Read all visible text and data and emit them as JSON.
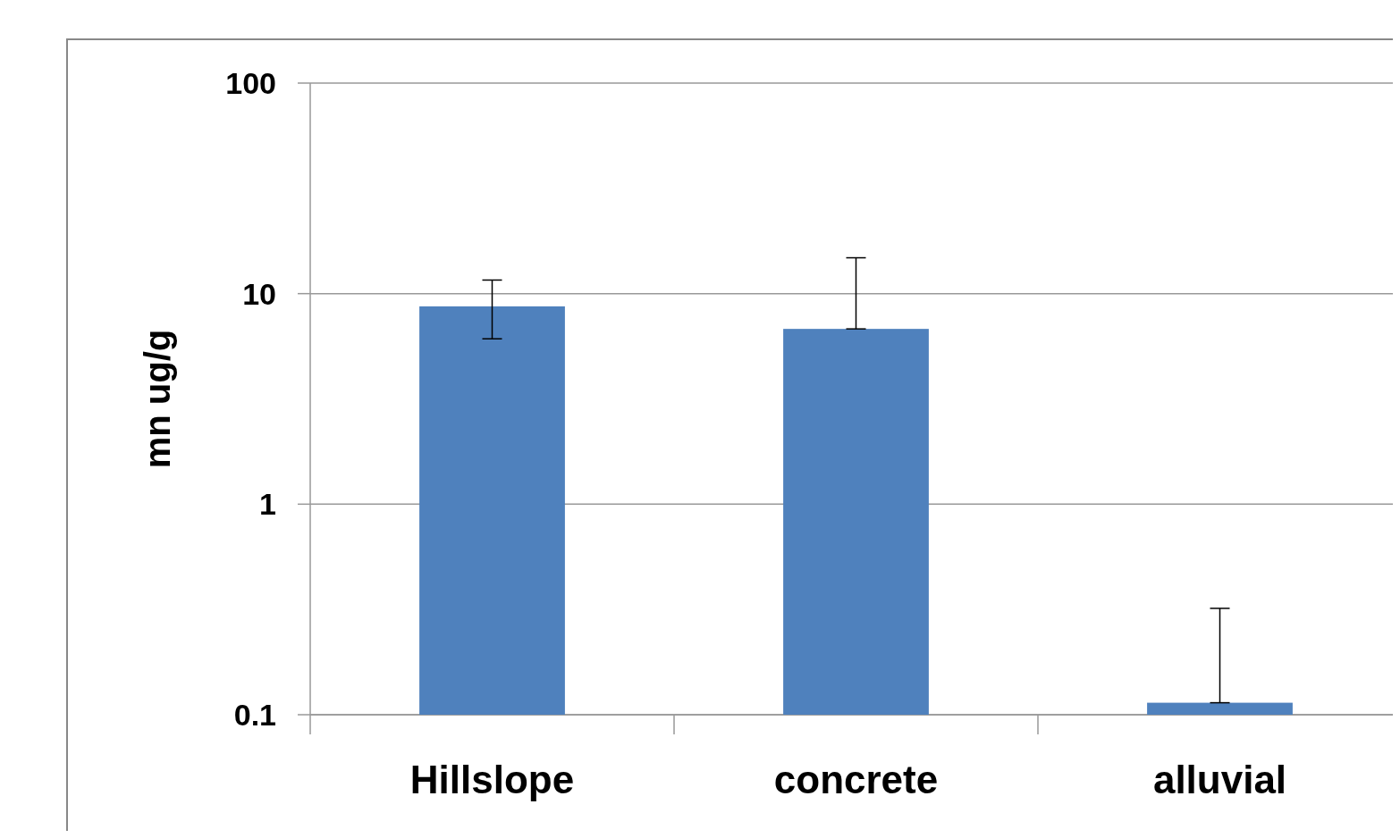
{
  "chart_data": {
    "type": "bar",
    "ylabel": "mn ug/g",
    "categories": [
      "Hillslope",
      "concrete",
      "alluvial"
    ],
    "values": [
      8.7,
      6.8,
      0.114
    ],
    "color": "#4f81bd",
    "errors": [
      [
        6.1,
        11.6
      ],
      [
        6.8,
        14.8
      ],
      [
        0.114,
        0.32
      ]
    ],
    "log": "y",
    "ylim": [
      0.1,
      100
    ],
    "yticks": [
      0.1,
      1,
      10,
      100
    ],
    "grid": "y"
  }
}
